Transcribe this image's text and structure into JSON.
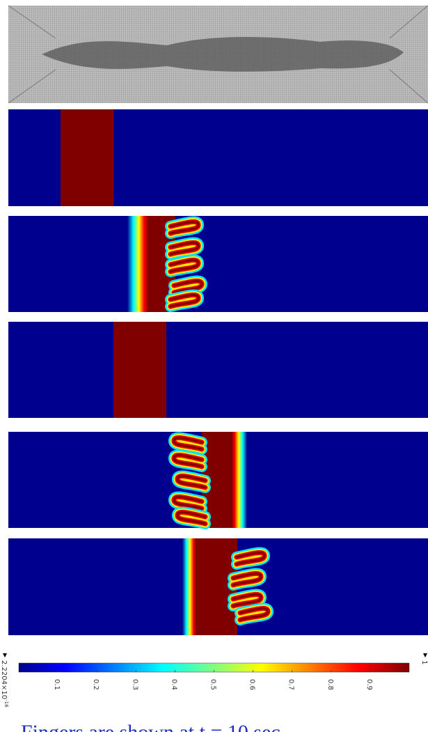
{
  "colorbar": {
    "range": [
      2.2204e-16,
      1
    ],
    "ticks": [
      0.1,
      0.2,
      0.3,
      0.4,
      0.5,
      0.6,
      0.7,
      0.8,
      0.9
    ],
    "min_label": {
      "mantissa": "2.2204×10",
      "exponent": "-16"
    },
    "max_label": "1"
  },
  "caption": "Fingers are shown at t = 10 sec"
}
